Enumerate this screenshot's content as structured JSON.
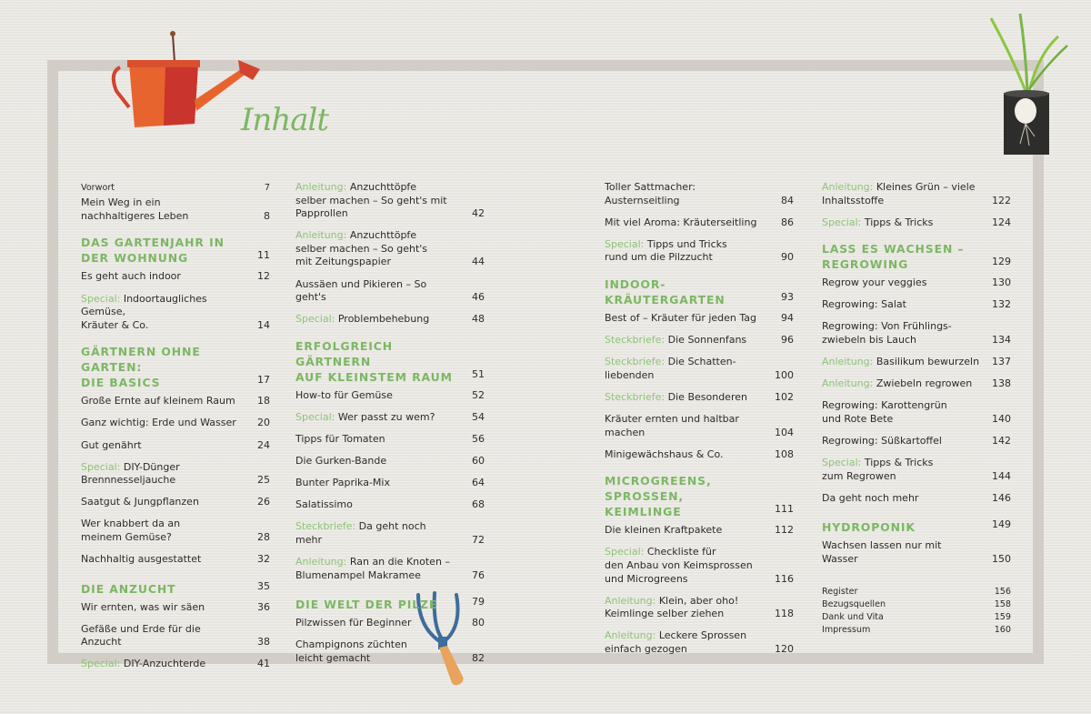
{
  "title": "Inhalt",
  "colors": {
    "accent_green": "#7cb764",
    "frame": "#d2cdc6",
    "text": "#2c2b29"
  },
  "columns": [
    [
      {
        "type": "small-top",
        "text": "Vorwort",
        "page": "7"
      },
      {
        "type": "entry",
        "text": "Mein Weg in ein\nnachhaltigeres Leben",
        "page": "8"
      },
      {
        "type": "heading",
        "text": "DAS GARTENJAHR IN\nDER WOHNUNG",
        "page": "11"
      },
      {
        "type": "entry",
        "text": "Es geht auch indoor",
        "page": "12"
      },
      {
        "type": "entry",
        "prefix": "Special:",
        "text": "Indoortaugliches Gemüse,\nKräuter & Co.",
        "page": "14"
      },
      {
        "type": "heading",
        "text": "GÄRTNERN OHNE GARTEN:\nDIE BASICS",
        "page": "17"
      },
      {
        "type": "entry",
        "text": "Große Ernte auf kleinem Raum",
        "page": "18"
      },
      {
        "type": "entry",
        "text": "Ganz wichtig: Erde und Wasser",
        "page": "20"
      },
      {
        "type": "entry",
        "text": "Gut genährt",
        "page": "24"
      },
      {
        "type": "entry",
        "prefix": "Special:",
        "text": "DIY-Dünger\nBrennnesseljauche",
        "page": "25"
      },
      {
        "type": "entry",
        "text": "Saatgut & Jungpflanzen",
        "page": "26"
      },
      {
        "type": "entry",
        "text": "Wer knabbert da an\nmeinem Gemüse?",
        "page": "28"
      },
      {
        "type": "entry",
        "text": "Nachhaltig ausgestattet",
        "page": "32"
      },
      {
        "type": "heading",
        "text": "DIE ANZUCHT",
        "page": "35"
      },
      {
        "type": "entry",
        "text": "Wir ernten, was wir säen",
        "page": "36"
      },
      {
        "type": "entry",
        "text": "Gefäße und Erde für die Anzucht",
        "page": "38"
      },
      {
        "type": "entry",
        "prefix": "Special:",
        "text": "DIY-Anzuchterde",
        "page": "41"
      }
    ],
    [
      {
        "type": "entry",
        "prefix": "Anleitung:",
        "text": "Anzuchttöpfe\nselber machen – So geht's mit\nPapprollen",
        "page": "42"
      },
      {
        "type": "entry",
        "prefix": "Anleitung:",
        "text": "Anzuchttöpfe\nselber machen – So geht's\nmit Zeitungspapier",
        "page": "44"
      },
      {
        "type": "entry",
        "text": "Aussäen und Pikieren – So geht's",
        "page": "46"
      },
      {
        "type": "entry",
        "prefix": "Special:",
        "text": "Problembehebung",
        "page": "48"
      },
      {
        "type": "heading",
        "text": "ERFOLGREICH GÄRTNERN\nAUF KLEINSTEM RAUM",
        "page": "51"
      },
      {
        "type": "entry",
        "text": "How-to für Gemüse",
        "page": "52"
      },
      {
        "type": "entry",
        "prefix": "Special:",
        "text": "Wer passt zu wem?",
        "page": "54"
      },
      {
        "type": "entry",
        "text": "Tipps für Tomaten",
        "page": "56"
      },
      {
        "type": "entry",
        "text": "Die Gurken-Bande",
        "page": "60"
      },
      {
        "type": "entry",
        "text": "Bunter Paprika-Mix",
        "page": "64"
      },
      {
        "type": "entry",
        "text": "Salatissimo",
        "page": "68"
      },
      {
        "type": "entry",
        "prefix": "Steckbriefe:",
        "text": "Da geht noch mehr",
        "page": "72"
      },
      {
        "type": "entry",
        "prefix": "Anleitung:",
        "text": "Ran an die Knoten –\nBlumenampel Makramee",
        "page": "76"
      },
      {
        "type": "heading",
        "text": "DIE WELT DER PILZE",
        "page": "79"
      },
      {
        "type": "entry",
        "text": "Pilzwissen für Beginner",
        "page": "80"
      },
      {
        "type": "entry",
        "text": "Champignons züchten\nleicht gemacht",
        "page": "82"
      }
    ],
    [
      {
        "type": "entry",
        "text": "Toller Sattmacher: Austernseitling",
        "page": "84"
      },
      {
        "type": "entry",
        "text": "Mit viel Aroma: Kräuterseitling",
        "page": "86"
      },
      {
        "type": "entry",
        "prefix": "Special:",
        "text": "Tipps und Tricks\nrund um die Pilzzucht",
        "page": "90"
      },
      {
        "type": "heading",
        "text": "INDOOR-KRÄUTERGARTEN",
        "page": "93"
      },
      {
        "type": "entry",
        "text": "Best of – Kräuter für jeden Tag",
        "page": "94"
      },
      {
        "type": "entry",
        "prefix": "Steckbriefe:",
        "text": "Die Sonnenfans",
        "page": "96"
      },
      {
        "type": "entry",
        "prefix": "Steckbriefe:",
        "text": "Die Schatten-\nliebenden",
        "page": "100"
      },
      {
        "type": "entry",
        "prefix": "Steckbriefe:",
        "text": "Die Besonderen",
        "page": "102"
      },
      {
        "type": "entry",
        "text": "Kräuter ernten und haltbar machen",
        "page": "104"
      },
      {
        "type": "entry",
        "text": "Minigewächshaus & Co.",
        "page": "108"
      },
      {
        "type": "heading",
        "text": "MICROGREENS, SPROSSEN,\nKEIMLINGE",
        "page": "111"
      },
      {
        "type": "entry",
        "text": "Die kleinen Kraftpakete",
        "page": "112"
      },
      {
        "type": "entry",
        "prefix": "Special:",
        "text": "Checkliste für\nden Anbau von Keimsprossen\nund Microgreens",
        "page": "116"
      },
      {
        "type": "entry",
        "prefix": "Anleitung:",
        "text": "Klein, aber oho!\nKeimlinge selber ziehen",
        "page": "118"
      },
      {
        "type": "entry",
        "prefix": "Anleitung:",
        "text": "Leckere Sprossen\neinfach gezogen",
        "page": "120"
      }
    ],
    [
      {
        "type": "entry",
        "prefix": "Anleitung:",
        "text": "Kleines Grün – viele\nInhaltsstoffe",
        "page": "122"
      },
      {
        "type": "entry",
        "prefix": "Special:",
        "text": "Tipps & Tricks",
        "page": "124"
      },
      {
        "type": "heading",
        "text": "LASS ES WACHSEN –\nREGROWING",
        "page": "129"
      },
      {
        "type": "entry",
        "text": "Regrow your veggies",
        "page": "130"
      },
      {
        "type": "entry",
        "text": "Regrowing: Salat",
        "page": "132"
      },
      {
        "type": "entry",
        "text": "Regrowing: Von Frühlings-\nzwiebeln bis Lauch",
        "page": "134"
      },
      {
        "type": "entry",
        "prefix": "Anleitung:",
        "text": "Basilikum bewurzeln",
        "page": "137"
      },
      {
        "type": "entry",
        "prefix": "Anleitung:",
        "text": "Zwiebeln regrowen",
        "page": "138"
      },
      {
        "type": "entry",
        "text": "Regrowing: Karottengrün\nund Rote Bete",
        "page": "140"
      },
      {
        "type": "entry",
        "text": "Regrowing: Süßkartoffel",
        "page": "142"
      },
      {
        "type": "entry",
        "prefix": "Special:",
        "text": "Tipps & Tricks\nzum Regrowen",
        "page": "144"
      },
      {
        "type": "entry",
        "text": "Da geht noch mehr",
        "page": "146"
      },
      {
        "type": "heading",
        "text": "HYDROPONIK",
        "page": "149"
      },
      {
        "type": "entry",
        "text": "Wachsen lassen nur mit Wasser",
        "page": "150"
      },
      {
        "type": "small",
        "text": "Register",
        "page": "156"
      },
      {
        "type": "small",
        "text": "Bezugsquellen",
        "page": "158"
      },
      {
        "type": "small",
        "text": "Dank und Vita",
        "page": "159"
      },
      {
        "type": "small",
        "text": "Impressum",
        "page": "160"
      }
    ]
  ]
}
